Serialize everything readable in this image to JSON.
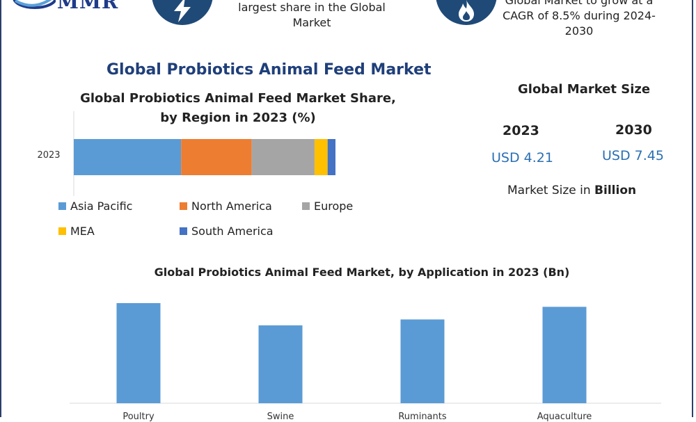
{
  "logo": {
    "text": "MMR"
  },
  "header": {
    "left_text_lines": [
      "largest share in the Global",
      "Market"
    ],
    "right_text_lines": [
      "Global Market to grow at a",
      "CAGR of 8.5% during 2024-",
      "2030"
    ],
    "icons": [
      "lightning-icon",
      "flame-icon"
    ]
  },
  "main_title": "Global Probiotics Animal Feed Market",
  "colors": {
    "asia_pacific": "#5b9bd5",
    "north_america": "#ed7d31",
    "europe": "#a5a5a5",
    "mea": "#ffc000",
    "south_america": "#4472c4",
    "title_blue": "#1f3f7a",
    "value_blue": "#2a6fb3",
    "icon_bg": "#1f4a78"
  },
  "market_size": {
    "title": "Global Market Size",
    "year_2023": "2023",
    "year_2030": "2030",
    "value_2023": "USD 4.21",
    "value_2030": "USD 7.45",
    "note_prefix": "Market Size in ",
    "note_bold": "Billion"
  },
  "chart_data": [
    {
      "type": "bar",
      "orientation": "horizontal-stacked",
      "title_lines": [
        "Global Probiotics Animal Feed Market Share,",
        "by Region in 2023 (%)"
      ],
      "categories": [
        "2023"
      ],
      "series": [
        {
          "name": "Asia Pacific",
          "values": [
            41
          ]
        },
        {
          "name": "North America",
          "values": [
            27
          ]
        },
        {
          "name": "Europe",
          "values": [
            24
          ]
        },
        {
          "name": "MEA",
          "values": [
            5
          ]
        },
        {
          "name": "South America",
          "values": [
            3
          ]
        }
      ],
      "legend_placement": "bottom",
      "grid": false
    },
    {
      "type": "bar",
      "title": "Global Probiotics Animal Feed Market, by Application in 2023 (Bn)",
      "categories": [
        "Poultry",
        "Swine",
        "Ruminants",
        "Aquaculture"
      ],
      "values": [
        1.35,
        1.05,
        1.13,
        1.3
      ],
      "ylim": [
        0,
        1.5
      ],
      "grid": false
    }
  ]
}
